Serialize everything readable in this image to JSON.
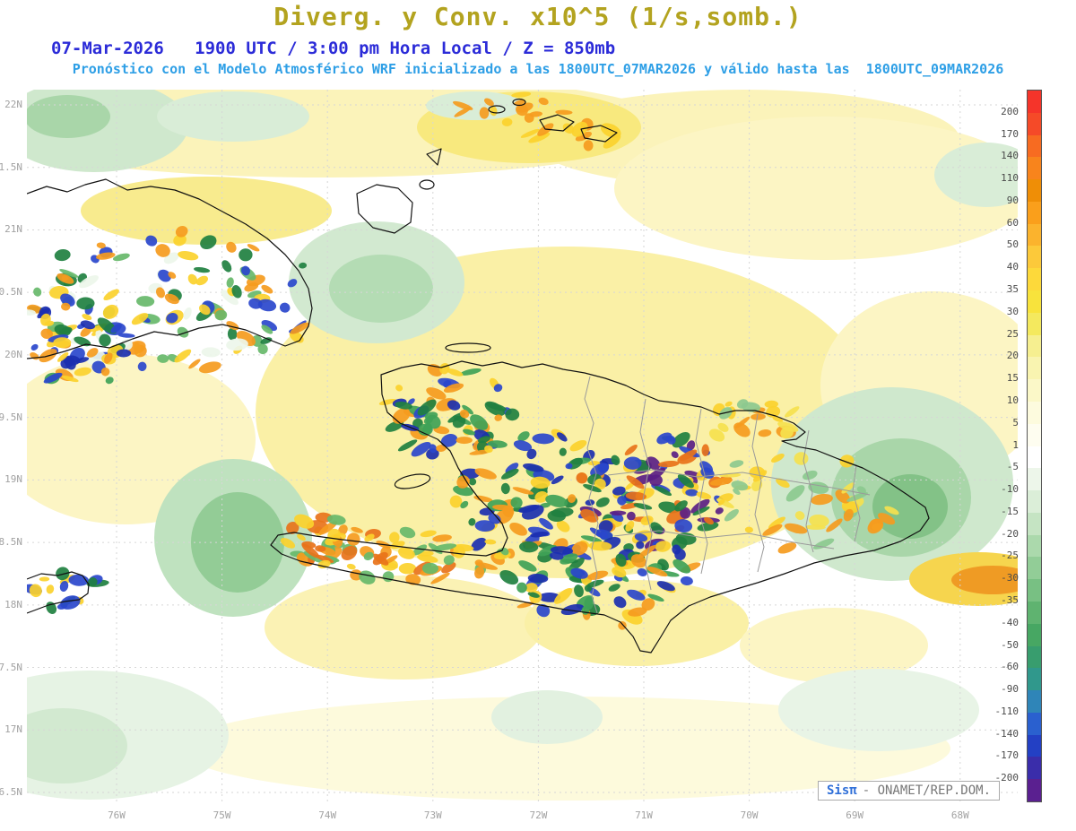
{
  "header": {
    "title": "Diverg. y Conv. x10^5 (1/s,somb.)",
    "subtitle1": "07-Mar-2026   1900 UTC / 3:00 pm Hora Local / Z = 850mb",
    "subtitle2": "Pronóstico con el Modelo Atmosférico WRF inicializado a las 1800UTC_07MAR2026 y válido hasta las  1800UTC_09MAR2026"
  },
  "footer": {
    "brand": "Sisπ",
    "credit": "- ONAMET/REP.DOM."
  },
  "colors": {
    "title": "#b3a31f",
    "subtitle1": "#2b2bd8",
    "subtitle2": "#2e9fe6",
    "axis": "#a2a2a2",
    "colorbar_label": "#4a4a4a",
    "brand": "#2f6fd8",
    "credit": "#777777"
  },
  "chart_data": {
    "type": "heatmap",
    "title": "Diverg. y Conv. x10^5 (1/s,somb.)",
    "field": "Divergence and Convergence",
    "units": "x10^5 (1/s)",
    "level": "850mb",
    "valid_time": "07-Mar-2026 1900 UTC / 3:00 pm Hora Local",
    "model": "WRF",
    "initialized": "1800UTC_07MAR2026",
    "valid_until": "1800UTC_09MAR2026",
    "x_ticks": [
      "76W",
      "75W",
      "74W",
      "73W",
      "72W",
      "71W",
      "70W",
      "69W",
      "68W"
    ],
    "y_ticks": [
      "22N",
      "1.5N",
      "21N",
      "0.5N",
      "20N",
      "9.5N",
      "19N",
      "8.5N",
      "18N",
      "7.5N",
      "17N",
      "6.5N"
    ],
    "grid": true,
    "legend_position": "right",
    "colorbar": {
      "levels": [
        200,
        170,
        140,
        110,
        90,
        60,
        50,
        40,
        35,
        30,
        25,
        20,
        15,
        10,
        5,
        1,
        -5,
        -10,
        -15,
        -20,
        -25,
        -30,
        -35,
        -40,
        -50,
        -60,
        -90,
        -110,
        -140,
        -170,
        -200
      ],
      "colors": [
        "#f5342a",
        "#f54a28",
        "#f76b21",
        "#f8841c",
        "#ef8e06",
        "#fa9f1b",
        "#fbb32d",
        "#fcc93a",
        "#fdd93a",
        "#f8e33c",
        "#f4e95e",
        "#f6ef90",
        "#f9f4b0",
        "#fbf8c8",
        "#fdfbde",
        "#fefdf0",
        "#ffffff",
        "#edf6ea",
        "#dbeed8",
        "#c5e4c3",
        "#abd9ac",
        "#92cd97",
        "#78c083",
        "#5fb370",
        "#47a763",
        "#389d6e",
        "#30988c",
        "#2f85b8",
        "#2a60cf",
        "#2340c4",
        "#3a2daa",
        "#5a2090"
      ]
    }
  }
}
